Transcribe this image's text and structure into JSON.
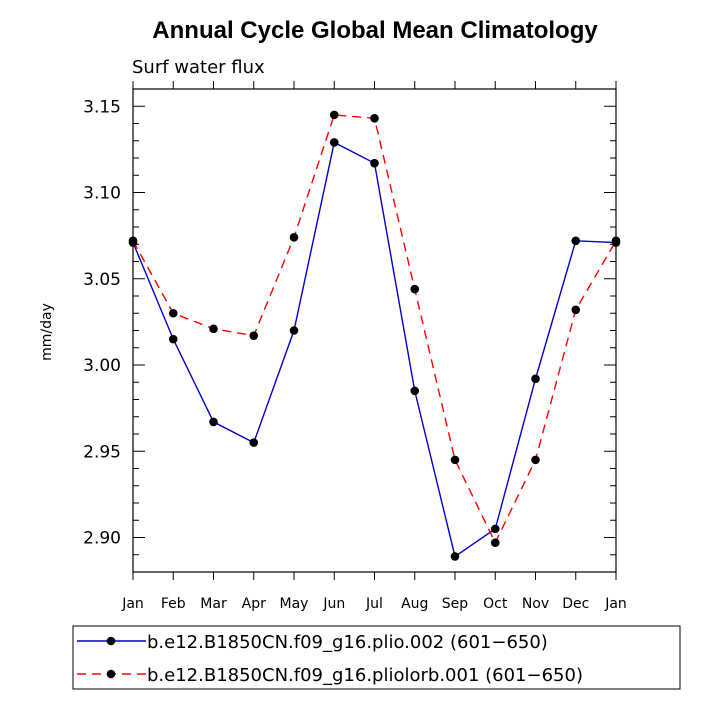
{
  "chart_data": {
    "type": "line",
    "title": "Annual Cycle Global Mean Climatology",
    "subtitle": "Surf water flux",
    "xlabel": "",
    "ylabel": "mm/day",
    "categories": [
      "Jan",
      "Feb",
      "Mar",
      "Apr",
      "May",
      "Jun",
      "Jul",
      "Aug",
      "Sep",
      "Oct",
      "Nov",
      "Dec",
      "Jan"
    ],
    "ylim": [
      2.88,
      3.16
    ],
    "yticks": [
      2.9,
      2.95,
      3.0,
      3.05,
      3.1,
      3.15
    ],
    "ytick_labels": [
      "2.90",
      "2.95",
      "3.00",
      "3.05",
      "3.10",
      "3.15"
    ],
    "grid": false,
    "legend_position": "bottom",
    "series": [
      {
        "name": "b.e12.B1850CN.f09_g16.plio.002 (601−650)",
        "color": "#0000cc",
        "dash": "solid",
        "marker": "filled-circle",
        "values": [
          3.071,
          3.015,
          2.967,
          2.955,
          3.02,
          3.129,
          3.117,
          2.985,
          2.889,
          2.905,
          2.992,
          3.072,
          3.071
        ]
      },
      {
        "name": "b.e12.B1850CN.f09_g16.pliolorb.001 (601−650)",
        "color": "#ff0000",
        "dash": "dashed",
        "marker": "filled-circle",
        "values": [
          3.072,
          3.03,
          3.021,
          3.017,
          3.074,
          3.145,
          3.143,
          3.044,
          2.945,
          2.897,
          2.945,
          3.032,
          3.072
        ]
      }
    ]
  }
}
